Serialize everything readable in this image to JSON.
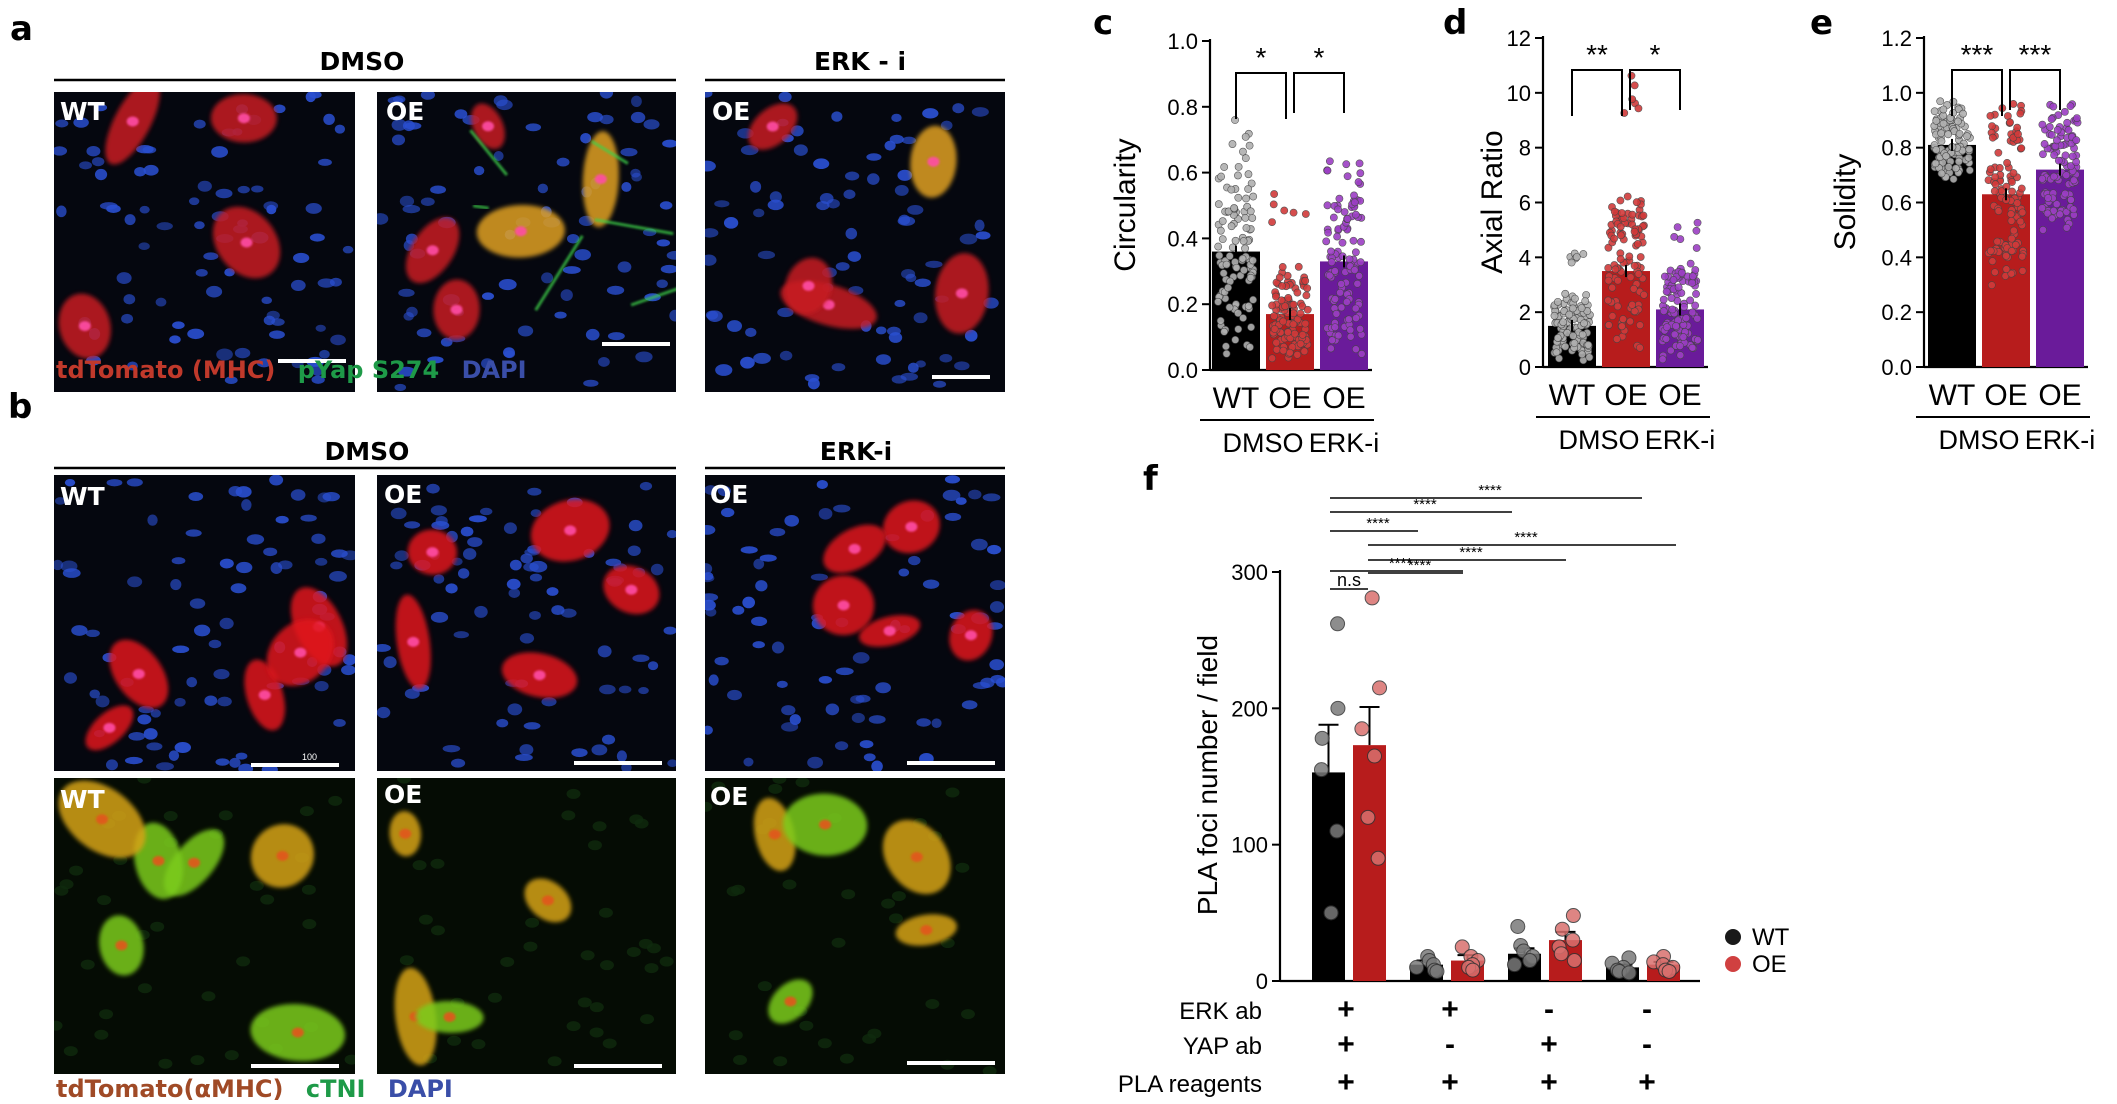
{
  "panel_labels": [
    "a",
    "b",
    "c",
    "d",
    "e",
    "f"
  ],
  "panel_a": {
    "groups": [
      {
        "title": "DMSO"
      },
      {
        "title": "ERK - i"
      }
    ],
    "images": [
      {
        "tag": "WT",
        "stain": "red-green-blue"
      },
      {
        "tag": "OE",
        "stain": "red-green-blue"
      },
      {
        "tag": "OE",
        "stain": "red-green-blue"
      }
    ],
    "legend": [
      {
        "text": "tdTomato (MHC)",
        "color": "#c0392b"
      },
      {
        "text": "pYap S274",
        "color": "#1e9a48"
      },
      {
        "text": "DAPI",
        "color": "#3a4ea8"
      }
    ]
  },
  "panel_b": {
    "groups": [
      {
        "title": "DMSO"
      },
      {
        "title": "ERK-i"
      }
    ],
    "top_images": [
      {
        "tag": "WT",
        "stain": "red-blue"
      },
      {
        "tag": "OE",
        "stain": "red-blue"
      },
      {
        "tag": "OE",
        "stain": "red-blue"
      }
    ],
    "bottom_images": [
      {
        "tag": "WT",
        "stain": "green-red"
      },
      {
        "tag": "OE",
        "stain": "green-red"
      },
      {
        "tag": "OE",
        "stain": "green-red"
      }
    ],
    "scale_text": "100",
    "legend": [
      {
        "text": "tdTomato(αMHC)",
        "color": "#a04a26"
      },
      {
        "text": "cTNI",
        "color": "#1e9a48"
      },
      {
        "text": "DAPI",
        "color": "#3a4ea8"
      }
    ]
  },
  "chart_data": [
    {
      "panel": "c",
      "type": "bar",
      "ylabel": "Circularity",
      "ylim": [
        0,
        1.0
      ],
      "yticks": [
        "0.0",
        "0.2",
        "0.4",
        "0.6",
        "0.8",
        "1.0"
      ],
      "categories": [
        "WT",
        "OE",
        "OE"
      ],
      "group_labels": [
        "DMSO",
        "ERK-i"
      ],
      "values": [
        0.36,
        0.17,
        0.33
      ],
      "spread_max": [
        0.77,
        0.55,
        0.7
      ],
      "colors": [
        "#000000",
        "#b71c1c",
        "#6a1b9a"
      ],
      "sig": [
        {
          "from": 0,
          "to": 1,
          "text": "*"
        },
        {
          "from": 1,
          "to": 2,
          "text": "*"
        }
      ]
    },
    {
      "panel": "d",
      "type": "bar",
      "ylabel": "Axial Ratio",
      "ylim": [
        0,
        12
      ],
      "yticks": [
        "0",
        "2",
        "4",
        "6",
        "8",
        "10",
        "12"
      ],
      "categories": [
        "WT",
        "OE",
        "OE"
      ],
      "group_labels": [
        "DMSO",
        "ERK-i"
      ],
      "values": [
        1.5,
        3.5,
        2.1
      ],
      "spread_max": [
        4.2,
        11.2,
        5.3
      ],
      "colors": [
        "#000000",
        "#b71c1c",
        "#6a1b9a"
      ],
      "sig": [
        {
          "from": 0,
          "to": 1,
          "text": "**"
        },
        {
          "from": 1,
          "to": 2,
          "text": "*"
        }
      ]
    },
    {
      "panel": "e",
      "type": "bar",
      "ylabel": "Solidity",
      "ylim": [
        0,
        1.2
      ],
      "yticks": [
        "0.0",
        "0.2",
        "0.4",
        "0.6",
        "0.8",
        "1.0",
        "1.2"
      ],
      "categories": [
        "WT",
        "OE",
        "OE"
      ],
      "group_labels": [
        "DMSO",
        "ERK-i"
      ],
      "values": [
        0.81,
        0.63,
        0.72
      ],
      "spread_max": [
        0.97,
        0.97,
        0.97
      ],
      "colors": [
        "#000000",
        "#b71c1c",
        "#6a1b9a"
      ],
      "sig": [
        {
          "from": 0,
          "to": 1,
          "text": "***"
        },
        {
          "from": 1,
          "to": 2,
          "text": "***"
        }
      ]
    },
    {
      "panel": "f",
      "type": "bar",
      "ylabel": "PLA foci number / field",
      "ylim": [
        0,
        300
      ],
      "yticks": [
        "0",
        "100",
        "200",
        "300"
      ],
      "conditions": [
        {
          "erk": "+",
          "yap": "+",
          "pla": "+"
        },
        {
          "erk": "+",
          "yap": "-",
          "pla": "+"
        },
        {
          "erk": "-",
          "yap": "+",
          "pla": "+"
        },
        {
          "erk": "-",
          "yap": "-",
          "pla": "+"
        }
      ],
      "row_labels": [
        "ERK ab",
        "YAP ab",
        "PLA reagents"
      ],
      "series": [
        {
          "name": "WT",
          "color": "#000000",
          "values": [
            153,
            12,
            20,
            10
          ],
          "errors": [
            35,
            3,
            4,
            2
          ],
          "points": [
            [
              262,
              200,
              178,
              155,
              110,
              50
            ],
            [
              18,
              15,
              12,
              10,
              8,
              7
            ],
            [
              40,
              26,
              22,
              18,
              15,
              12
            ],
            [
              17,
              13,
              10,
              8,
              7,
              6
            ]
          ]
        },
        {
          "name": "OE",
          "color": "#b71c1c",
          "values": [
            173,
            15,
            30,
            12
          ],
          "errors": [
            28,
            4,
            6,
            2
          ],
          "points": [
            [
              281,
              215,
              185,
              165,
              120,
              90
            ],
            [
              25,
              18,
              15,
              12,
              10,
              8
            ],
            [
              48,
              38,
              30,
              25,
              20,
              15
            ],
            [
              18,
              14,
              12,
              10,
              8,
              7
            ]
          ]
        }
      ],
      "comparisons": [
        {
          "text": "n.s"
        },
        {
          "text": "****"
        },
        {
          "text": "****"
        },
        {
          "text": "****"
        },
        {
          "text": "****"
        },
        {
          "text": "****"
        },
        {
          "text": "****"
        },
        {
          "text": "****"
        }
      ]
    }
  ]
}
